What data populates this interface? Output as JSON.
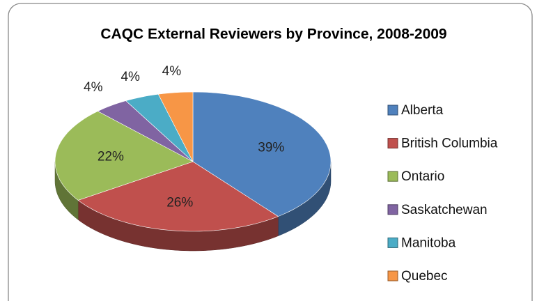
{
  "chart_data": {
    "type": "pie",
    "title": "CAQC External Reviewers by Province, 2008-2009",
    "categories": [
      "Alberta",
      "British Columbia",
      "Ontario",
      "Saskatchewan",
      "Manitoba",
      "Quebec"
    ],
    "values": [
      39,
      26,
      22,
      4,
      4,
      4
    ],
    "value_labels": [
      "39%",
      "26%",
      "22%",
      "4%",
      "4%",
      "4%"
    ],
    "colors": [
      "#4f81bd",
      "#c0504d",
      "#9bbb59",
      "#8064a2",
      "#4bacc6",
      "#f79646"
    ],
    "legend": "right"
  }
}
